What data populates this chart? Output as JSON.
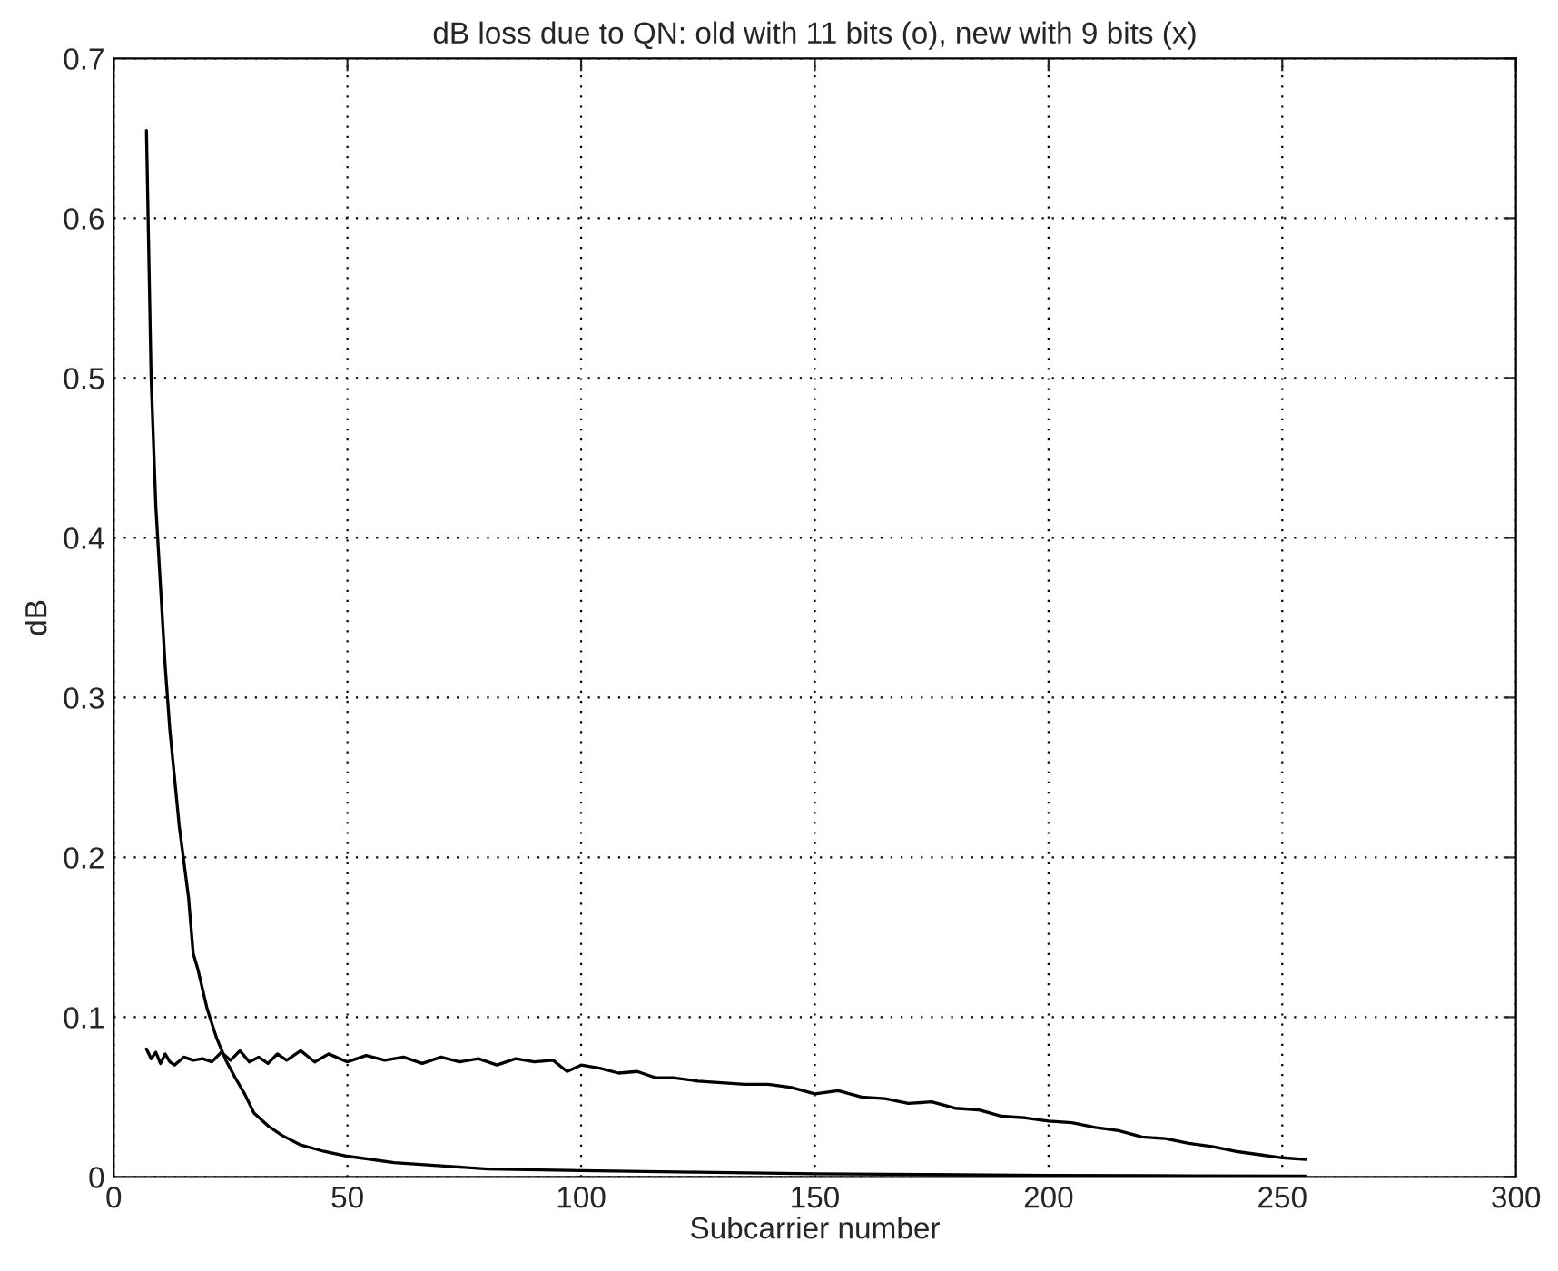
{
  "chart_data": {
    "type": "line",
    "title": "dB loss due to QN: old with 11 bits (o), new with 9 bits (x)",
    "xlabel": "Subcarrier number",
    "ylabel": "dB",
    "xlim": [
      0,
      300
    ],
    "xticks": [
      0,
      50,
      100,
      150,
      200,
      250,
      300
    ],
    "ylim": [
      0,
      0.7
    ],
    "yticks": [
      0,
      0.1,
      0.2,
      0.3,
      0.4,
      0.5,
      0.6,
      0.7
    ],
    "grid": true,
    "line_style": "solid",
    "marker": "none",
    "series": [
      {
        "color": "#000000",
        "x": [
          7,
          8,
          9,
          10,
          11,
          12,
          14,
          16,
          17,
          18,
          20,
          22,
          24,
          26,
          28,
          30,
          33,
          36,
          40,
          45,
          50,
          60,
          70,
          80,
          100,
          125,
          150,
          175,
          200,
          230,
          255
        ],
        "values": [
          0.655,
          0.5,
          0.42,
          0.37,
          0.32,
          0.28,
          0.22,
          0.175,
          0.14,
          0.13,
          0.105,
          0.087,
          0.073,
          0.062,
          0.052,
          0.04,
          0.032,
          0.026,
          0.02,
          0.016,
          0.013,
          0.009,
          0.007,
          0.005,
          0.004,
          0.003,
          0.002,
          0.0015,
          0.001,
          0.0007,
          0.0005
        ]
      },
      {
        "color": "#000000",
        "x": [
          7,
          8,
          9,
          10,
          11,
          12,
          13,
          15,
          17,
          19,
          21,
          23,
          25,
          27,
          29,
          31,
          33,
          35,
          37,
          40,
          43,
          46,
          50,
          54,
          58,
          62,
          66,
          70,
          74,
          78,
          82,
          86,
          90,
          94,
          97,
          100,
          104,
          108,
          112,
          116,
          120,
          125,
          130,
          135,
          140,
          145,
          150,
          155,
          160,
          165,
          170,
          175,
          180,
          185,
          190,
          195,
          200,
          205,
          210,
          215,
          220,
          225,
          230,
          235,
          240,
          245,
          250,
          255
        ],
        "values": [
          0.08,
          0.074,
          0.078,
          0.071,
          0.077,
          0.072,
          0.07,
          0.075,
          0.073,
          0.074,
          0.072,
          0.078,
          0.073,
          0.079,
          0.072,
          0.075,
          0.071,
          0.077,
          0.073,
          0.079,
          0.072,
          0.077,
          0.072,
          0.076,
          0.073,
          0.075,
          0.071,
          0.075,
          0.072,
          0.074,
          0.07,
          0.074,
          0.072,
          0.073,
          0.066,
          0.07,
          0.068,
          0.065,
          0.066,
          0.062,
          0.062,
          0.06,
          0.059,
          0.058,
          0.058,
          0.056,
          0.052,
          0.054,
          0.05,
          0.049,
          0.046,
          0.047,
          0.043,
          0.042,
          0.038,
          0.037,
          0.035,
          0.034,
          0.031,
          0.029,
          0.025,
          0.024,
          0.021,
          0.019,
          0.016,
          0.014,
          0.012,
          0.011
        ]
      }
    ]
  }
}
